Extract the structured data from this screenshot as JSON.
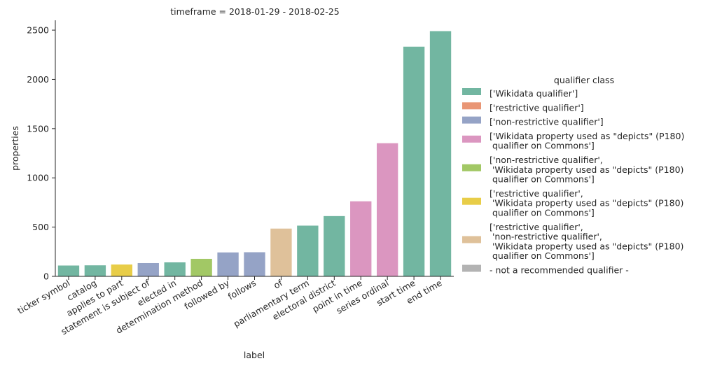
{
  "chart_data": {
    "type": "bar",
    "title": "timeframe = 2018-01-29 - 2018-02-25",
    "xlabel": "label",
    "ylabel": "properties",
    "ylim": [
      0,
      2600
    ],
    "yticks": [
      0,
      500,
      1000,
      1500,
      2000,
      2500
    ],
    "grid": false,
    "legend_position": "right",
    "legend_title": "qualifier class",
    "legend": [
      {
        "label": "['Wikidata qualifier']",
        "color": "#72b6a1"
      },
      {
        "label": "['restrictive qualifier']",
        "color": "#e99675"
      },
      {
        "label": "['non-restrictive qualifier']",
        "color": "#95a3c6"
      },
      {
        "label": "['Wikidata property used as \"depicts\" (P180)\n qualifier on Commons']",
        "color": "#db96c0"
      },
      {
        "label": "['non-restrictive qualifier',\n 'Wikidata property used as \"depicts\" (P180)\n qualifier on Commons']",
        "color": "#a2c865"
      },
      {
        "label": "['restrictive qualifier',\n 'Wikidata property used as \"depicts\" (P180)\n qualifier on Commons']",
        "color": "#e8cd48"
      },
      {
        "label": "['restrictive qualifier',\n 'non-restrictive qualifier',\n 'Wikidata property used as \"depicts\" (P180)\n qualifier on Commons']",
        "color": "#dfc19a"
      },
      {
        "label": "- not a recommended qualifier -",
        "color": "#b3b3b3"
      }
    ],
    "categories": [
      "ticker symbol",
      "catalog",
      "applies to part",
      "statement is subject of",
      "elected in",
      "determination method",
      "followed by",
      "follows",
      "of",
      "parliamentary term",
      "electoral district",
      "point in time",
      "series ordinal",
      "start time",
      "end time"
    ],
    "values": [
      110,
      112,
      120,
      135,
      142,
      178,
      243,
      245,
      485,
      515,
      612,
      762,
      1352,
      2332,
      2490
    ],
    "bar_class_index": [
      0,
      0,
      5,
      2,
      0,
      4,
      2,
      2,
      6,
      0,
      0,
      3,
      3,
      0,
      0
    ]
  }
}
